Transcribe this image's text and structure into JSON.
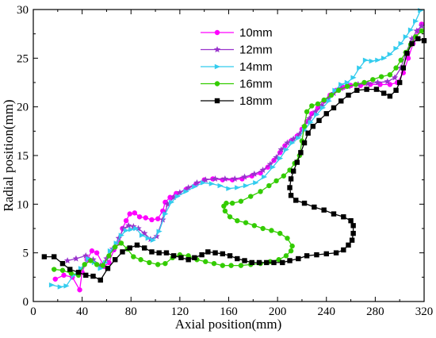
{
  "chart_data": {
    "type": "line",
    "title": "",
    "xlabel": "Axial position(mm)",
    "ylabel": "Radial position(mm)",
    "xlim": [
      0,
      320
    ],
    "ylim": [
      0,
      30
    ],
    "xticks": [
      0,
      40,
      80,
      120,
      160,
      200,
      240,
      280,
      320
    ],
    "yticks": [
      0,
      5,
      10,
      15,
      20,
      25,
      30
    ],
    "grid": false,
    "legend_position": "top-center",
    "series": [
      {
        "name": "10mm",
        "color": "#ff00ff",
        "marker": "circle",
        "points": [
          [
            18,
            2.3
          ],
          [
            25,
            2.7
          ],
          [
            32,
            2.5
          ],
          [
            38,
            1.2
          ],
          [
            40,
            3.0
          ],
          [
            44,
            4.3
          ],
          [
            48,
            5.2
          ],
          [
            52,
            5.0
          ],
          [
            58,
            3.6
          ],
          [
            62,
            4.0
          ],
          [
            66,
            5.3
          ],
          [
            70,
            6.0
          ],
          [
            73,
            7.5
          ],
          [
            76,
            8.3
          ],
          [
            79,
            9.0
          ],
          [
            83,
            9.1
          ],
          [
            87,
            8.7
          ],
          [
            92,
            8.6
          ],
          [
            97,
            8.4
          ],
          [
            102,
            8.5
          ],
          [
            106,
            9.3
          ],
          [
            108,
            10.2
          ],
          [
            112,
            10.7
          ],
          [
            117,
            11.1
          ],
          [
            125,
            11.5
          ],
          [
            133,
            12.0
          ],
          [
            140,
            12.5
          ],
          [
            147,
            12.6
          ],
          [
            155,
            12.5
          ],
          [
            163,
            12.5
          ],
          [
            171,
            12.6
          ],
          [
            179,
            12.9
          ],
          [
            186,
            13.2
          ],
          [
            192,
            13.8
          ],
          [
            197,
            14.5
          ],
          [
            202,
            15.3
          ],
          [
            206,
            16.0
          ],
          [
            211,
            16.5
          ],
          [
            216,
            17.0
          ],
          [
            220,
            17.7
          ],
          [
            224,
            18.5
          ],
          [
            228,
            19.3
          ],
          [
            233,
            19.9
          ],
          [
            238,
            20.6
          ],
          [
            243,
            21.2
          ],
          [
            248,
            21.7
          ],
          [
            254,
            22.0
          ],
          [
            260,
            22.2
          ],
          [
            268,
            22.2
          ],
          [
            276,
            22.3
          ],
          [
            284,
            22.3
          ],
          [
            292,
            22.3
          ],
          [
            298,
            22.5
          ],
          [
            303,
            23.5
          ],
          [
            307,
            25.0
          ],
          [
            311,
            26.5
          ],
          [
            315,
            27.8
          ],
          [
            318,
            28.5
          ]
        ]
      },
      {
        "name": "12mm",
        "color": "#9933cc",
        "marker": "star",
        "points": [
          [
            28,
            4.2
          ],
          [
            35,
            4.4
          ],
          [
            43,
            4.7
          ],
          [
            49,
            4.3
          ],
          [
            55,
            3.7
          ],
          [
            60,
            4.4
          ],
          [
            65,
            5.4
          ],
          [
            70,
            6.5
          ],
          [
            74,
            7.5
          ],
          [
            78,
            7.8
          ],
          [
            82,
            7.7
          ],
          [
            86,
            7.5
          ],
          [
            91,
            7.0
          ],
          [
            96,
            6.4
          ],
          [
            101,
            6.7
          ],
          [
            106,
            8.4
          ],
          [
            110,
            10.0
          ],
          [
            115,
            10.7
          ],
          [
            120,
            11.2
          ],
          [
            127,
            11.7
          ],
          [
            134,
            12.2
          ],
          [
            141,
            12.5
          ],
          [
            149,
            12.6
          ],
          [
            157,
            12.6
          ],
          [
            165,
            12.6
          ],
          [
            173,
            12.8
          ],
          [
            181,
            13.1
          ],
          [
            188,
            13.5
          ],
          [
            194,
            14.1
          ],
          [
            199,
            14.8
          ],
          [
            203,
            15.6
          ],
          [
            208,
            16.3
          ],
          [
            213,
            16.7
          ],
          [
            218,
            17.2
          ],
          [
            222,
            18.0
          ],
          [
            226,
            18.8
          ],
          [
            231,
            19.5
          ],
          [
            236,
            20.1
          ],
          [
            241,
            20.8
          ],
          [
            246,
            21.4
          ],
          [
            252,
            21.9
          ],
          [
            258,
            22.1
          ],
          [
            266,
            22.3
          ],
          [
            274,
            22.4
          ],
          [
            282,
            22.5
          ],
          [
            290,
            22.6
          ],
          [
            296,
            23.0
          ],
          [
            301,
            24.0
          ],
          [
            305,
            25.5
          ],
          [
            310,
            27.0
          ],
          [
            314,
            27.8
          ],
          [
            318,
            28.3
          ]
        ]
      },
      {
        "name": "14mm",
        "color": "#33ccee",
        "marker": "triangle-right",
        "points": [
          [
            15,
            1.7
          ],
          [
            22,
            1.5
          ],
          [
            27,
            1.6
          ],
          [
            33,
            2.7
          ],
          [
            39,
            3.4
          ],
          [
            45,
            4.4
          ],
          [
            50,
            4.0
          ],
          [
            55,
            3.4
          ],
          [
            59,
            4.0
          ],
          [
            63,
            5.2
          ],
          [
            68,
            6.0
          ],
          [
            72,
            6.8
          ],
          [
            76,
            7.3
          ],
          [
            80,
            7.4
          ],
          [
            84,
            7.5
          ],
          [
            89,
            6.8
          ],
          [
            94,
            6.5
          ],
          [
            98,
            6.3
          ],
          [
            103,
            7.2
          ],
          [
            108,
            9.0
          ],
          [
            113,
            10.2
          ],
          [
            118,
            10.8
          ],
          [
            125,
            11.3
          ],
          [
            132,
            11.8
          ],
          [
            139,
            12.2
          ],
          [
            146,
            12.1
          ],
          [
            153,
            11.9
          ],
          [
            160,
            11.6
          ],
          [
            167,
            11.7
          ],
          [
            174,
            11.9
          ],
          [
            182,
            12.2
          ],
          [
            189,
            12.8
          ],
          [
            196,
            13.8
          ],
          [
            202,
            14.7
          ],
          [
            207,
            15.6
          ],
          [
            212,
            16.3
          ],
          [
            217,
            16.8
          ],
          [
            222,
            17.6
          ],
          [
            227,
            18.4
          ],
          [
            232,
            19.2
          ],
          [
            237,
            19.9
          ],
          [
            242,
            20.6
          ],
          [
            247,
            21.7
          ],
          [
            252,
            22.3
          ],
          [
            257,
            22.5
          ],
          [
            262,
            23.0
          ],
          [
            267,
            24.0
          ],
          [
            272,
            24.8
          ],
          [
            277,
            24.7
          ],
          [
            282,
            24.8
          ],
          [
            287,
            25.0
          ],
          [
            292,
            25.4
          ],
          [
            297,
            26.0
          ],
          [
            301,
            26.5
          ],
          [
            305,
            27.2
          ],
          [
            309,
            27.9
          ],
          [
            313,
            28.8
          ],
          [
            317,
            29.9
          ]
        ]
      },
      {
        "name": "16mm",
        "color": "#33cc00",
        "marker": "circle",
        "points": [
          [
            17,
            3.3
          ],
          [
            24,
            3.2
          ],
          [
            31,
            2.9
          ],
          [
            37,
            2.7
          ],
          [
            42,
            3.8
          ],
          [
            47,
            4.2
          ],
          [
            52,
            3.8
          ],
          [
            57,
            3.7
          ],
          [
            62,
            4.7
          ],
          [
            67,
            5.6
          ],
          [
            72,
            6.0
          ],
          [
            77,
            5.4
          ],
          [
            82,
            4.6
          ],
          [
            88,
            4.3
          ],
          [
            95,
            4.0
          ],
          [
            102,
            3.8
          ],
          [
            108,
            3.9
          ],
          [
            114,
            4.5
          ],
          [
            120,
            4.8
          ],
          [
            127,
            4.7
          ],
          [
            134,
            4.3
          ],
          [
            141,
            4.1
          ],
          [
            148,
            3.9
          ],
          [
            155,
            3.7
          ],
          [
            162,
            3.7
          ],
          [
            170,
            3.7
          ],
          [
            178,
            3.8
          ],
          [
            186,
            3.9
          ],
          [
            194,
            4.1
          ],
          [
            201,
            4.3
          ],
          [
            207,
            4.7
          ],
          [
            211,
            5.2
          ],
          [
            212,
            5.7
          ],
          [
            208,
            6.5
          ],
          [
            202,
            7.0
          ],
          [
            195,
            7.3
          ],
          [
            188,
            7.5
          ],
          [
            181,
            7.8
          ],
          [
            174,
            8.1
          ],
          [
            167,
            8.3
          ],
          [
            161,
            8.7
          ],
          [
            157,
            9.3
          ],
          [
            156,
            9.8
          ],
          [
            158,
            10.1
          ],
          [
            163,
            10.1
          ],
          [
            170,
            10.3
          ],
          [
            178,
            10.8
          ],
          [
            186,
            11.3
          ],
          [
            193,
            11.9
          ],
          [
            199,
            12.4
          ],
          [
            205,
            12.9
          ],
          [
            210,
            13.5
          ],
          [
            214,
            14.2
          ],
          [
            218,
            15.0
          ],
          [
            220,
            16.5
          ],
          [
            222,
            18.0
          ],
          [
            224,
            19.5
          ],
          [
            228,
            20.1
          ],
          [
            233,
            20.3
          ],
          [
            238,
            20.7
          ],
          [
            244,
            21.2
          ],
          [
            250,
            21.7
          ],
          [
            257,
            22.1
          ],
          [
            264,
            22.3
          ],
          [
            271,
            22.5
          ],
          [
            278,
            22.8
          ],
          [
            285,
            23.1
          ],
          [
            292,
            23.3
          ],
          [
            297,
            24.0
          ],
          [
            301,
            24.8
          ],
          [
            305,
            25.6
          ],
          [
            309,
            26.4
          ],
          [
            313,
            27.2
          ],
          [
            318,
            27.8
          ]
        ]
      },
      {
        "name": "18mm",
        "color": "#000000",
        "marker": "square",
        "points": [
          [
            9,
            4.6
          ],
          [
            17,
            4.6
          ],
          [
            24,
            3.9
          ],
          [
            30,
            3.3
          ],
          [
            37,
            3.0
          ],
          [
            43,
            2.7
          ],
          [
            49,
            2.6
          ],
          [
            55,
            2.2
          ],
          [
            61,
            3.4
          ],
          [
            67,
            4.3
          ],
          [
            73,
            5.1
          ],
          [
            79,
            5.5
          ],
          [
            85,
            5.8
          ],
          [
            91,
            5.5
          ],
          [
            97,
            5.1
          ],
          [
            103,
            5.0
          ],
          [
            109,
            5.0
          ],
          [
            115,
            4.7
          ],
          [
            121,
            4.5
          ],
          [
            127,
            4.3
          ],
          [
            132,
            4.5
          ],
          [
            138,
            4.8
          ],
          [
            143,
            5.1
          ],
          [
            149,
            5.0
          ],
          [
            155,
            4.9
          ],
          [
            161,
            4.7
          ],
          [
            167,
            4.4
          ],
          [
            173,
            4.2
          ],
          [
            179,
            4.0
          ],
          [
            185,
            4.0
          ],
          [
            191,
            4.0
          ],
          [
            197,
            4.0
          ],
          [
            204,
            4.0
          ],
          [
            210,
            4.2
          ],
          [
            217,
            4.4
          ],
          [
            224,
            4.7
          ],
          [
            232,
            4.8
          ],
          [
            240,
            4.9
          ],
          [
            248,
            5.0
          ],
          [
            254,
            5.3
          ],
          [
            258,
            5.8
          ],
          [
            261,
            6.3
          ],
          [
            262,
            7.0
          ],
          [
            262,
            7.8
          ],
          [
            260,
            8.3
          ],
          [
            254,
            8.7
          ],
          [
            246,
            9.0
          ],
          [
            238,
            9.4
          ],
          [
            230,
            9.7
          ],
          [
            222,
            10.1
          ],
          [
            215,
            10.4
          ],
          [
            211,
            10.9
          ],
          [
            210,
            11.7
          ],
          [
            211,
            12.6
          ],
          [
            213,
            13.4
          ],
          [
            216,
            14.3
          ],
          [
            219,
            15.3
          ],
          [
            222,
            16.3
          ],
          [
            225,
            17.3
          ],
          [
            229,
            18.0
          ],
          [
            234,
            18.6
          ],
          [
            240,
            19.3
          ],
          [
            246,
            19.9
          ],
          [
            252,
            20.6
          ],
          [
            258,
            21.2
          ],
          [
            265,
            21.7
          ],
          [
            273,
            21.8
          ],
          [
            281,
            21.8
          ],
          [
            287,
            21.4
          ],
          [
            292,
            21.1
          ],
          [
            297,
            21.7
          ],
          [
            300,
            22.5
          ],
          [
            303,
            24.0
          ],
          [
            306,
            25.5
          ],
          [
            310,
            26.5
          ],
          [
            315,
            27.0
          ],
          [
            320,
            26.8
          ]
        ]
      }
    ]
  }
}
